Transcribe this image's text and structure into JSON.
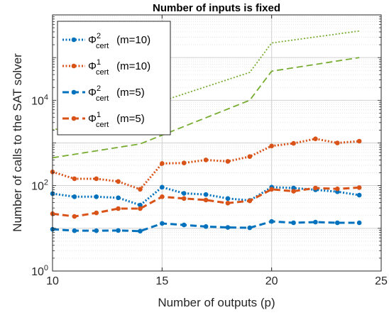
{
  "chart_data": {
    "type": "line",
    "title": "Number of inputs is fixed",
    "xlabel": "Number of outputs (p)",
    "ylabel": "Number of calls to the SAT solver",
    "x_scale": "linear",
    "y_scale": "log",
    "xlim": [
      10,
      25
    ],
    "ylim": [
      1,
      1000000
    ],
    "xticks": [
      10,
      15,
      20,
      25
    ],
    "xtick_labels": [
      "10",
      "15",
      "20",
      "25"
    ],
    "yticks": [
      1,
      100,
      10000
    ],
    "ytick_labels": [
      {
        "base": "10",
        "exp": "0"
      },
      {
        "base": "10",
        "exp": "2"
      },
      {
        "base": "10",
        "exp": "4"
      }
    ],
    "grid": true,
    "legend_position": "top-left",
    "series": [
      {
        "name": "Φ²cert (m=10)",
        "sym": "Φ",
        "sup": "2",
        "sub": "cert",
        "suffix": " (m=10)",
        "color": "#0072BD",
        "style": "dotted",
        "marker": true,
        "in_legend": true,
        "x": [
          10,
          11,
          12,
          13,
          14,
          15,
          16,
          17,
          18,
          19,
          20,
          21,
          22,
          23,
          24
        ],
        "y": [
          65,
          55,
          55,
          52,
          35,
          92,
          66,
          62,
          50,
          45,
          92,
          88,
          80,
          72,
          60
        ]
      },
      {
        "name": "Φ¹cert (m=10)",
        "sym": "Φ",
        "sup": "1",
        "sub": "cert",
        "suffix": " (m=10)",
        "color": "#D95319",
        "style": "dotted",
        "marker": true,
        "in_legend": true,
        "x": [
          10,
          11,
          12,
          13,
          14,
          15,
          16,
          17,
          18,
          19,
          20,
          21,
          22,
          23,
          24
        ],
        "y": [
          210,
          145,
          145,
          125,
          82,
          330,
          340,
          400,
          370,
          480,
          850,
          980,
          1250,
          1000,
          1100
        ]
      },
      {
        "name": "Φ²cert (m=5)",
        "sym": "Φ",
        "sup": "2",
        "sub": "cert",
        "suffix": " (m=5)",
        "color": "#0072BD",
        "style": "dashed",
        "marker": true,
        "in_legend": true,
        "x": [
          10,
          11,
          12,
          13,
          14,
          15,
          16,
          17,
          18,
          19,
          20,
          21,
          22,
          23,
          24
        ],
        "y": [
          9.5,
          8.8,
          8.8,
          8.9,
          8.6,
          13,
          12,
          11,
          10.5,
          10.3,
          14.5,
          13.5,
          14,
          13.5,
          13.5
        ]
      },
      {
        "name": "Φ¹cert (m=5)",
        "sym": "Φ",
        "sup": "1",
        "sub": "cert",
        "suffix": " (m=5)",
        "color": "#D95319",
        "style": "dashed",
        "marker": true,
        "in_legend": true,
        "x": [
          10,
          11,
          12,
          13,
          14,
          15,
          16,
          17,
          18,
          19,
          20,
          21,
          22,
          23,
          24
        ],
        "y": [
          22,
          19,
          23,
          29,
          29,
          55,
          50,
          46,
          39,
          44,
          82,
          74,
          88,
          84,
          90
        ]
      },
      {
        "color": "#77AC30",
        "style": "dotted",
        "marker": false,
        "in_legend": false,
        "x": [
          10,
          14,
          19,
          20,
          24
        ],
        "y": [
          2000,
          6500,
          45000,
          220000,
          420000
        ]
      },
      {
        "color": "#77AC30",
        "style": "dashed",
        "marker": false,
        "in_legend": false,
        "x": [
          10,
          14,
          19,
          20,
          24
        ],
        "y": [
          450,
          950,
          10000,
          48000,
          100000
        ]
      }
    ]
  }
}
